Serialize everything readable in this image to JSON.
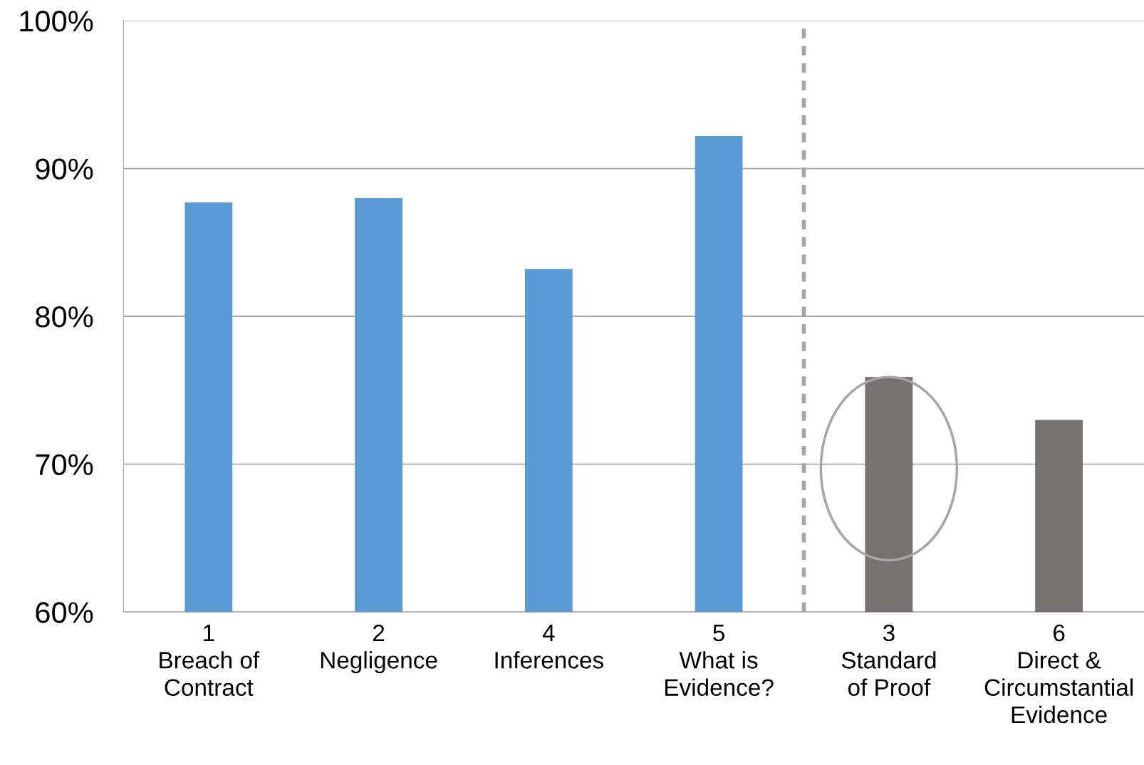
{
  "chart_data": {
    "type": "bar",
    "categories": [
      "1\nBreach of\nContract",
      "2\nNegligence",
      "4\nInferences",
      "5\nWhat is\nEvidence?",
      "3\nStandard\nof Proof",
      "6\nDirect &\nCircumstantial\nEvidence"
    ],
    "values": [
      87.7,
      88.0,
      83.2,
      92.2,
      75.9,
      73.0
    ],
    "colors": [
      "#5b9bd5",
      "#5b9bd5",
      "#5b9bd5",
      "#5b9bd5",
      "#767171",
      "#767171"
    ],
    "ylim": [
      60,
      100
    ],
    "yticks": [
      {
        "value": 60,
        "label": "60%"
      },
      {
        "value": 70,
        "label": "70%"
      },
      {
        "value": 80,
        "label": "80%"
      },
      {
        "value": 90,
        "label": "90%"
      },
      {
        "value": 100,
        "label": "100%"
      }
    ],
    "grid": "y"
  }
}
